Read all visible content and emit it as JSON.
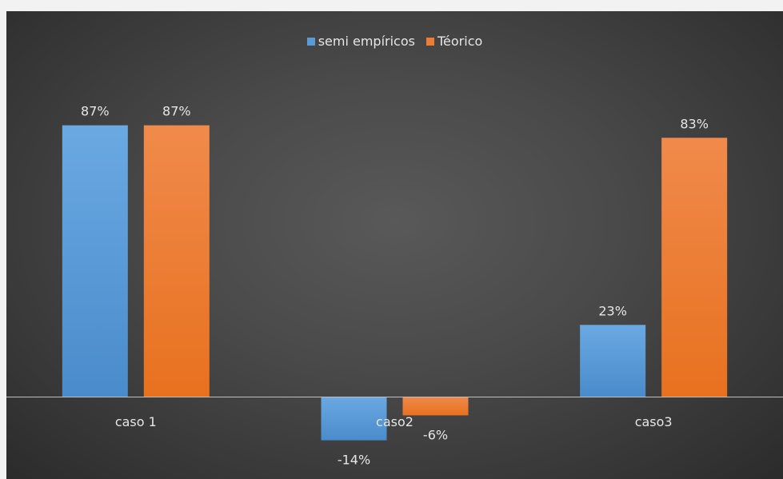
{
  "chart_data": {
    "type": "bar",
    "title": "",
    "xlabel": "",
    "ylabel": "",
    "categories": [
      "caso 1",
      "caso2",
      "caso3"
    ],
    "series": [
      {
        "name": "semi empíricos",
        "color": "#5b9bd5",
        "values": [
          87,
          -14,
          23
        ],
        "labels": [
          "87%",
          "-14%",
          "23%"
        ]
      },
      {
        "name": "Téorico",
        "color": "#ed7d31",
        "values": [
          87,
          -6,
          83
        ],
        "labels": [
          "87%",
          "-6%",
          "83%"
        ]
      }
    ],
    "ylim": [
      -25,
      100
    ],
    "grid": false,
    "legend_position": "top-center",
    "value_format": "percent"
  }
}
